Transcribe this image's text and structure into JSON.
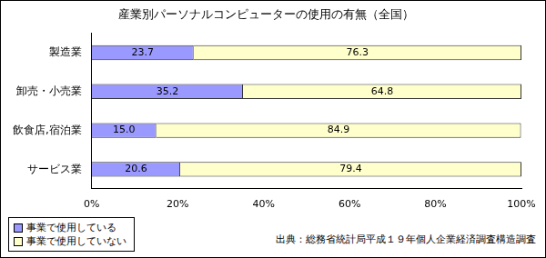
{
  "chart_data": {
    "type": "bar",
    "title": "産業別パーソナルコンピューターの使用の有無（全国）",
    "orientation": "horizontal",
    "stacked": true,
    "data_labels": true,
    "grid": false,
    "legend": "bottom-left",
    "categories": [
      "製造業",
      "卸売・小売業",
      "飲食店,宿泊業",
      "サービス業"
    ],
    "series": [
      {
        "name": "事業で使用している",
        "color": "#9999ff",
        "values": [
          23.7,
          35.2,
          15.0,
          20.6
        ],
        "value_labels": [
          "23.7",
          "35.2",
          "15.0",
          "20.6"
        ]
      },
      {
        "name": "事業で使用していない",
        "color": "#ffffcc",
        "values": [
          76.3,
          64.8,
          84.9,
          79.4
        ],
        "value_labels": [
          "76.3",
          "64.8",
          "84.9",
          "79.4"
        ]
      }
    ],
    "xlim": [
      0,
      100
    ],
    "xticks": [
      {
        "value": 0,
        "label": "0%"
      },
      {
        "value": 20,
        "label": "20%"
      },
      {
        "value": 40,
        "label": "40%"
      },
      {
        "value": 60,
        "label": "60%"
      },
      {
        "value": 80,
        "label": "80%"
      },
      {
        "value": 100,
        "label": "100%"
      }
    ],
    "annotations": [
      "出典：総務省統計局平成１９年個人企業経済調査構造調査"
    ]
  }
}
